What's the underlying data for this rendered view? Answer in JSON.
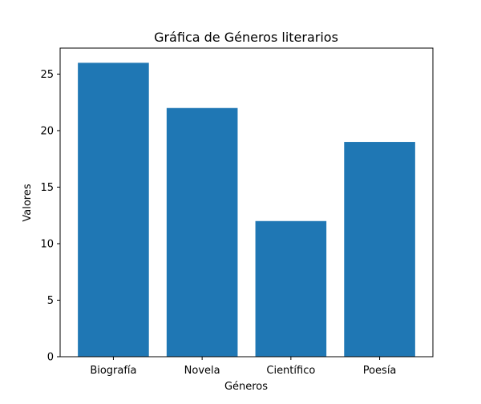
{
  "chart_data": {
    "type": "bar",
    "title": "Gráfica de Géneros literarios",
    "xlabel": "Géneros",
    "ylabel": "Valores",
    "categories": [
      "Biografía",
      "Novela",
      "Científico",
      "Poesía"
    ],
    "values": [
      26,
      22,
      12,
      19
    ],
    "ylim": [
      0,
      27.3
    ],
    "yticks": [
      0,
      5,
      10,
      15,
      20,
      25
    ],
    "grid": false,
    "bar_color": "#1f77b4"
  }
}
